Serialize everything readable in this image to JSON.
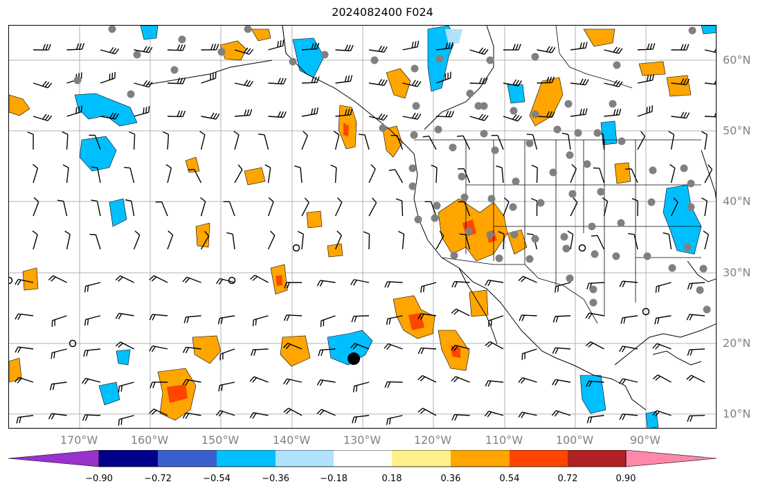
{
  "title": "2024082400 F024",
  "map": {
    "lat_labels": [
      "60°N",
      "50°N",
      "40°N",
      "30°N",
      "20°N",
      "10°N"
    ],
    "lon_labels": [
      "170°W",
      "160°W",
      "150°W",
      "140°W",
      "130°W",
      "120°W",
      "110°W",
      "100°W",
      "90°W"
    ],
    "colors": {
      "gridline": "#b0b0b0",
      "coast": "#000000",
      "barb": "#000000",
      "station": "#808080",
      "label": "#808080"
    }
  },
  "colorbar": {
    "labels": [
      "−0.90",
      "−0.72",
      "−0.54",
      "−0.36",
      "−0.18",
      "0.18",
      "0.36",
      "0.54",
      "0.72",
      "0.90"
    ],
    "colors": [
      "#9932cc",
      "#00008b",
      "#3a5fcd",
      "#00bfff",
      "#b0e2ff",
      "#ffffff",
      "#fff08a",
      "#ffa500",
      "#ff4500",
      "#b22222",
      "#ff88aa"
    ]
  }
}
